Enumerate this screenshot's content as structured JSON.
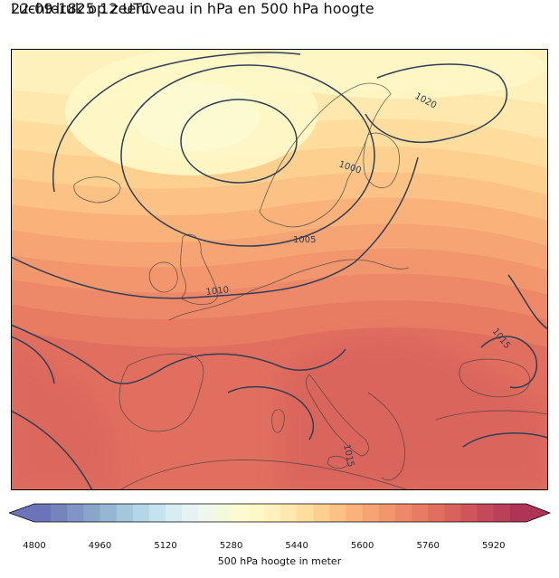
{
  "header": {
    "date_line": "22-09-1825 12 UTC",
    "subtitle": "Luchtdruk op zeeniveau in hPa en 500 hPa hoogte"
  },
  "map": {
    "contour_labels": [
      {
        "text": "1020"
      },
      {
        "text": "1000"
      },
      {
        "text": "1005"
      },
      {
        "text": "1010"
      },
      {
        "text": "1015"
      },
      {
        "text": "1015"
      }
    ],
    "isobar_color": "#2f3f56",
    "coast_color": "#444444"
  },
  "colorbar": {
    "label": "500 hPa hoogte in meter",
    "ticks": [
      "4800",
      "4960",
      "5120",
      "5280",
      "5440",
      "5600",
      "5760",
      "5920"
    ],
    "range": [
      4800,
      6000
    ],
    "step": 40,
    "colors": [
      "#6b74b8",
      "#7684bd",
      "#8195c4",
      "#89a5ca",
      "#95b7d3",
      "#a3c8db",
      "#b3d7e6",
      "#c5e3ee",
      "#d7ecf3",
      "#e6f3f3",
      "#eff7ea",
      "#f5f9dc",
      "#fbfad1",
      "#fef8c8",
      "#fef1bb",
      "#fee8ad",
      "#fedd9e",
      "#fdd090",
      "#fcc184",
      "#f9b27a",
      "#f6a474",
      "#f2966d",
      "#ed8968",
      "#e77c63",
      "#e06f5f",
      "#d8625c",
      "#cf555a",
      "#c54a59",
      "#ba3f58",
      "#ae3557"
    ]
  }
}
